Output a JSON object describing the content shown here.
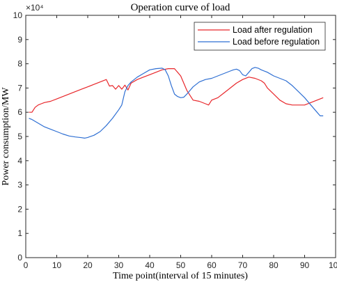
{
  "chart_data": {
    "type": "line",
    "title": "Operation curve of load",
    "xlabel": "Time point(interval of 15 minutes)",
    "ylabel": "Power consumption/MW",
    "y_exponent_label": "×10⁴",
    "y_scale": 10000,
    "xlim": [
      0,
      100
    ],
    "ylim": [
      0,
      10
    ],
    "xticks": [
      "0",
      "10",
      "20",
      "30",
      "40",
      "50",
      "60",
      "70",
      "80",
      "90",
      "100"
    ],
    "yticks": [
      "0",
      "1",
      "2",
      "3",
      "4",
      "5",
      "6",
      "7",
      "8",
      "9",
      "10"
    ],
    "grid": false,
    "legend_position": "top-right",
    "series": [
      {
        "name": "Load after regulation",
        "color": "#e8262a",
        "x": [
          1,
          2,
          3,
          4,
          5,
          6,
          8,
          10,
          12,
          14,
          16,
          18,
          20,
          22,
          24,
          26,
          27,
          28,
          29,
          30,
          31,
          32,
          33,
          34,
          36,
          38,
          40,
          42,
          44,
          46,
          48,
          50,
          52,
          54,
          56,
          58,
          59,
          60,
          62,
          64,
          66,
          68,
          70,
          72,
          74,
          76,
          77,
          78,
          80,
          82,
          84,
          86,
          88,
          90,
          92,
          94,
          96
        ],
        "y": [
          6.0,
          6.0,
          6.2,
          6.3,
          6.35,
          6.4,
          6.45,
          6.55,
          6.65,
          6.75,
          6.85,
          6.95,
          7.05,
          7.15,
          7.25,
          7.35,
          7.08,
          7.1,
          6.95,
          7.1,
          6.95,
          7.12,
          6.92,
          7.2,
          7.35,
          7.45,
          7.55,
          7.65,
          7.75,
          7.8,
          7.8,
          7.5,
          6.9,
          6.5,
          6.45,
          6.35,
          6.3,
          6.5,
          6.6,
          6.8,
          7.0,
          7.2,
          7.35,
          7.45,
          7.4,
          7.3,
          7.2,
          7.0,
          6.75,
          6.5,
          6.35,
          6.3,
          6.3,
          6.3,
          6.4,
          6.5,
          6.6
        ]
      },
      {
        "name": "Load before regulation",
        "color": "#2e6fd3",
        "x": [
          1,
          2,
          4,
          6,
          8,
          10,
          12,
          14,
          16,
          18,
          19,
          20,
          22,
          24,
          26,
          28,
          30,
          31,
          32,
          33,
          34,
          35,
          36,
          38,
          40,
          42,
          44,
          45,
          46,
          47,
          48,
          49,
          50,
          51,
          52,
          54,
          56,
          58,
          60,
          62,
          64,
          66,
          67,
          68,
          69,
          70,
          71,
          72,
          73,
          74,
          75,
          76,
          78,
          80,
          82,
          84,
          86,
          88,
          90,
          92,
          94,
          95,
          96
        ],
        "y": [
          5.75,
          5.7,
          5.55,
          5.4,
          5.3,
          5.2,
          5.1,
          5.02,
          4.98,
          4.95,
          4.93,
          4.96,
          5.05,
          5.2,
          5.45,
          5.75,
          6.1,
          6.3,
          6.85,
          7.1,
          7.25,
          7.35,
          7.45,
          7.6,
          7.75,
          7.8,
          7.82,
          7.75,
          7.5,
          7.1,
          6.75,
          6.65,
          6.6,
          6.62,
          6.75,
          7.05,
          7.25,
          7.35,
          7.4,
          7.5,
          7.6,
          7.7,
          7.75,
          7.78,
          7.72,
          7.55,
          7.5,
          7.65,
          7.8,
          7.85,
          7.82,
          7.75,
          7.65,
          7.5,
          7.4,
          7.3,
          7.1,
          6.85,
          6.6,
          6.3,
          6.0,
          5.85,
          5.85
        ]
      }
    ]
  }
}
